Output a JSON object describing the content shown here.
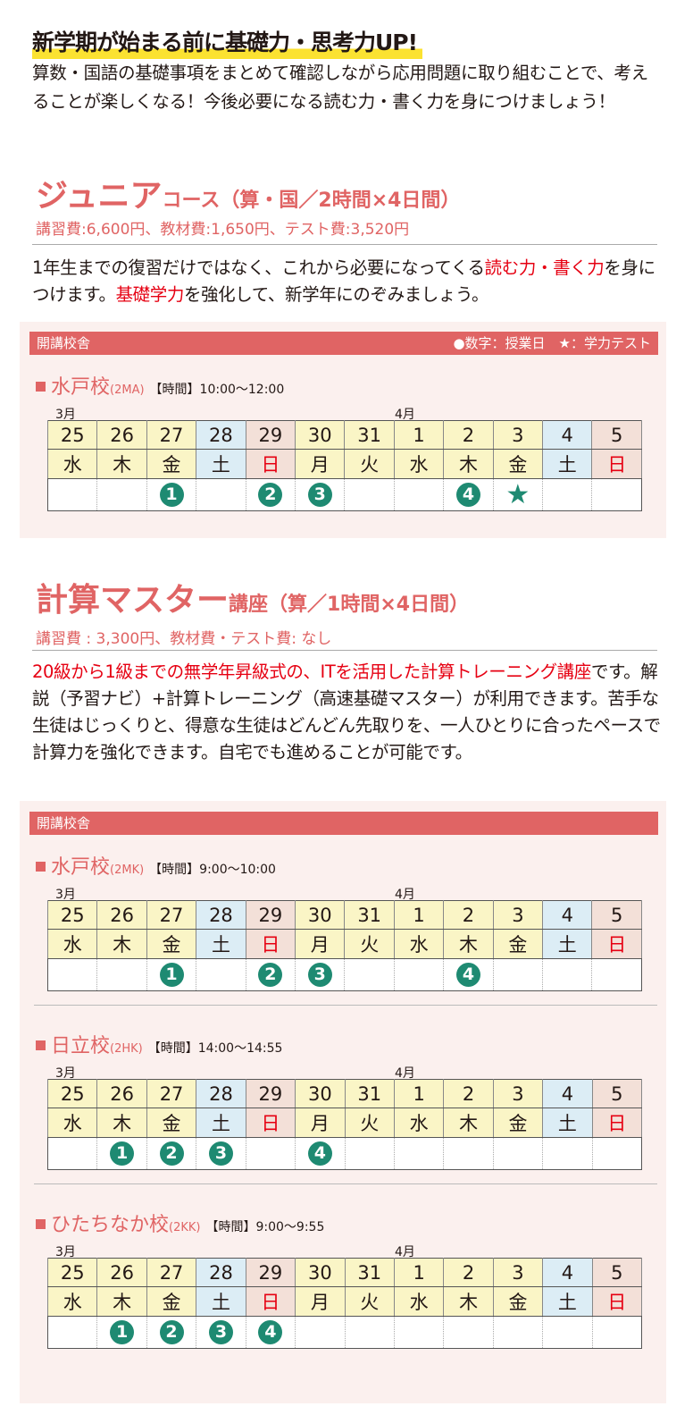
{
  "headline": "新学期が始まる前に基礎力・思考力UP!",
  "intro": "算数・国語の基礎事項をまとめて確認しながら応用問題に取り組むことで、考えることが楽しくなる！今後必要になる読む力・書く力を身につけましょう！",
  "junior": {
    "title_big": "ジュニア",
    "title_small": "コース（算・国／2時間×4日間）",
    "fee": "講習費:6,600円、教材費:1,650円、テスト費:3,520円",
    "desc": [
      {
        "t": "1年生までの復習だけではなく、これから必要になってくる"
      },
      {
        "t": "読む力・書く力",
        "red": true
      },
      {
        "t": "を身につけます。"
      },
      {
        "t": "基礎学力",
        "red": true
      },
      {
        "t": "を強化して、新学年にのぞみましょう。"
      }
    ],
    "panel_label": "開講校舎",
    "legend": "●数字：授業日　★：学力テスト",
    "schools": [
      {
        "name": "水戸校",
        "code": "(2MA)",
        "time": "【時間】10:00〜12:00",
        "marks": [
          "",
          "",
          "1",
          "",
          "2",
          "3",
          "",
          "",
          "4",
          "★",
          "",
          ""
        ]
      }
    ]
  },
  "keisan": {
    "title_big": "計算マスター",
    "title_small": "講座（算／1時間×4日間）",
    "fee": "講習費 : 3,300円、教材費・テスト費: なし",
    "desc": [
      {
        "t": "20級から1級までの無学年昇級式の、ITを活用した計算トレーニング講座",
        "red": true
      },
      {
        "t": "です。解説（予習ナビ）+計算トレーニング（高速基礎マスター）が利用できます。苦手な生徒はじっくりと、得意な生徒はどんどん先取りを、一人ひとりに合ったペースで計算力を強化できます。自宅でも進めることが可能です。"
      }
    ],
    "panel_label": "開講校舎",
    "schools": [
      {
        "name": "水戸校",
        "code": "(2MK)",
        "time": "【時間】9:00〜10:00",
        "marks": [
          "",
          "",
          "1",
          "",
          "2",
          "3",
          "",
          "",
          "4",
          "",
          "",
          ""
        ]
      },
      {
        "name": "日立校",
        "code": "(2HK)",
        "time": "【時間】14:00〜14:55",
        "marks": [
          "",
          "1",
          "2",
          "3",
          "",
          "4",
          "",
          "",
          "",
          "",
          "",
          ""
        ]
      },
      {
        "name": "ひたちなか校",
        "code": "(2KK)",
        "time": "【時間】9:00〜9:55",
        "marks": [
          "",
          "1",
          "2",
          "3",
          "4",
          "",
          "",
          "",
          "",
          "",
          "",
          ""
        ]
      }
    ]
  },
  "calendar": {
    "month_march": "3月",
    "month_april": "4月",
    "dates": [
      "25",
      "26",
      "27",
      "28",
      "29",
      "30",
      "31",
      "1",
      "2",
      "3",
      "4",
      "5"
    ],
    "weekdays": [
      "水",
      "木",
      "金",
      "土",
      "日",
      "月",
      "火",
      "水",
      "木",
      "金",
      "土",
      "日"
    ],
    "types": [
      "wk",
      "wk",
      "wk",
      "sat",
      "sun",
      "wk",
      "wk",
      "wk",
      "wk",
      "wk",
      "sat",
      "sun"
    ]
  },
  "colors": {
    "accent": "#e06464",
    "red_text": "#e60012",
    "mark": "#1e8a72",
    "highlight": "#fbe231"
  }
}
